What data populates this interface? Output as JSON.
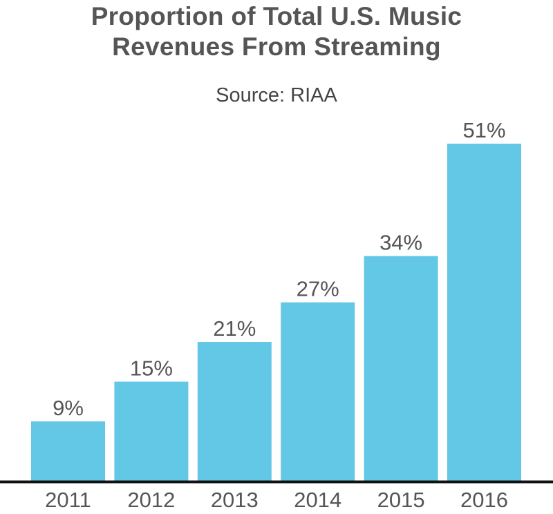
{
  "chart_data": {
    "type": "bar",
    "title": "Proportion of Total U.S. Music Revenues From Streaming",
    "title_lines": [
      "Proportion of Total U.S. Music",
      "Revenues From Streaming"
    ],
    "subtitle": "Source: RIAA",
    "categories": [
      "2011",
      "2012",
      "2013",
      "2014",
      "2015",
      "2016"
    ],
    "values": [
      9,
      15,
      21,
      27,
      34,
      51
    ],
    "value_labels": [
      "9%",
      "15%",
      "21%",
      "27%",
      "34%",
      "51%"
    ],
    "xlabel": "",
    "ylabel": "",
    "ylim": [
      0,
      70
    ],
    "grid": false,
    "bar_color": "#63c8e6",
    "axis_color": "#111111",
    "text_color": "#555555"
  }
}
